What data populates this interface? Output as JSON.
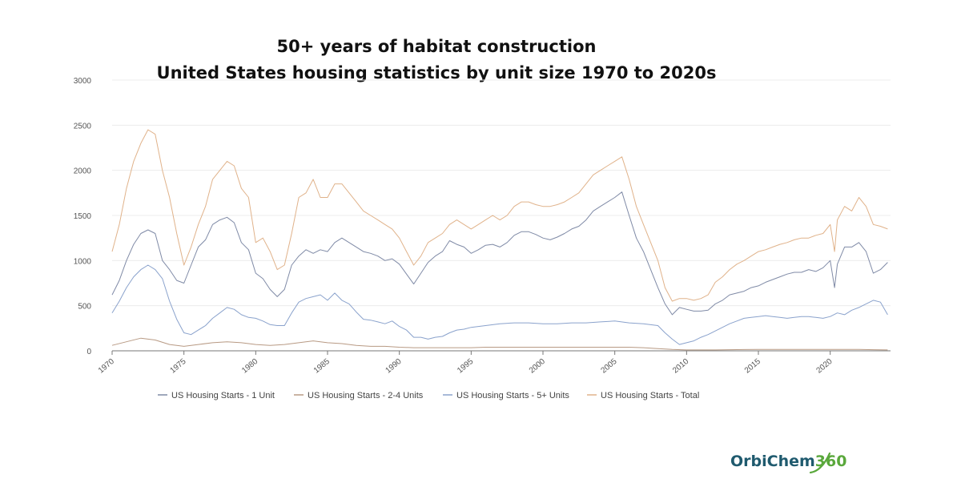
{
  "chart_data": {
    "type": "line",
    "title": "50+ years of habitat construction",
    "subtitle": "United States housing statistics by unit size 1970 to 2020s",
    "xlabel": "",
    "ylabel": "",
    "xlim": [
      1970,
      2024.2
    ],
    "ylim": [
      0,
      3000
    ],
    "y_ticks": [
      0,
      500,
      1000,
      1500,
      2000,
      2500,
      3000
    ],
    "x_ticks": [
      1970,
      1975,
      1980,
      1985,
      1990,
      1995,
      2000,
      2005,
      2010,
      2015,
      2020
    ],
    "grid": true,
    "legend_position": "bottom",
    "series": [
      {
        "name": "US Housing Starts - 1 Unit",
        "color": "#7f8aa6",
        "x": [
          1970,
          1970.5,
          1971,
          1971.5,
          1972,
          1972.5,
          1973,
          1973.5,
          1974,
          1974.5,
          1975,
          1975.5,
          1976,
          1976.5,
          1977,
          1977.5,
          1978,
          1978.5,
          1979,
          1979.5,
          1980,
          1980.5,
          1981,
          1981.5,
          1982,
          1982.5,
          1983,
          1983.5,
          1984,
          1984.5,
          1985,
          1985.5,
          1986,
          1986.5,
          1987,
          1987.5,
          1988,
          1988.5,
          1989,
          1989.5,
          1990,
          1990.5,
          1991,
          1991.5,
          1992,
          1992.5,
          1993,
          1993.5,
          1994,
          1994.5,
          1995,
          1995.5,
          1996,
          1996.5,
          1997,
          1997.5,
          1998,
          1998.5,
          1999,
          1999.5,
          2000,
          2000.5,
          2001,
          2001.5,
          2002,
          2002.5,
          2003,
          2003.5,
          2004,
          2004.5,
          2005,
          2005.5,
          2006,
          2006.5,
          2007,
          2007.5,
          2008,
          2008.5,
          2009,
          2009.5,
          2010,
          2010.5,
          2011,
          2011.5,
          2012,
          2012.5,
          2013,
          2013.5,
          2014,
          2014.5,
          2015,
          2015.5,
          2016,
          2016.5,
          2017,
          2017.5,
          2018,
          2018.5,
          2019,
          2019.5,
          2020,
          2020.3,
          2020.5,
          2021,
          2021.5,
          2022,
          2022.5,
          2023,
          2023.5,
          2024
        ],
        "values": [
          620,
          780,
          1000,
          1180,
          1300,
          1340,
          1300,
          1000,
          900,
          780,
          750,
          950,
          1150,
          1230,
          1400,
          1450,
          1480,
          1420,
          1200,
          1120,
          860,
          800,
          680,
          600,
          680,
          950,
          1050,
          1120,
          1080,
          1120,
          1100,
          1200,
          1250,
          1200,
          1150,
          1100,
          1080,
          1050,
          1000,
          1020,
          960,
          850,
          740,
          860,
          980,
          1050,
          1100,
          1220,
          1180,
          1150,
          1080,
          1120,
          1170,
          1180,
          1150,
          1200,
          1280,
          1320,
          1320,
          1290,
          1250,
          1230,
          1260,
          1300,
          1350,
          1380,
          1450,
          1550,
          1600,
          1650,
          1700,
          1760,
          1500,
          1250,
          1100,
          900,
          700,
          520,
          400,
          480,
          460,
          440,
          440,
          450,
          520,
          560,
          620,
          640,
          660,
          700,
          720,
          760,
          790,
          820,
          850,
          870,
          870,
          900,
          880,
          920,
          1000,
          700,
          960,
          1150,
          1150,
          1200,
          1100,
          860,
          900,
          980
        ]
      },
      {
        "name": "US Housing Starts - 2-4 Units",
        "color": "#b89a84",
        "x": [
          1970,
          1971,
          1972,
          1973,
          1974,
          1975,
          1976,
          1977,
          1978,
          1979,
          1980,
          1981,
          1982,
          1983,
          1984,
          1985,
          1986,
          1987,
          1988,
          1989,
          1990,
          1991,
          1992,
          1993,
          1994,
          1995,
          1996,
          1997,
          1998,
          1999,
          2000,
          2001,
          2002,
          2003,
          2004,
          2005,
          2006,
          2007,
          2008,
          2009,
          2010,
          2011,
          2012,
          2013,
          2014,
          2015,
          2016,
          2017,
          2018,
          2019,
          2020,
          2021,
          2022,
          2023,
          2024
        ],
        "values": [
          60,
          100,
          140,
          120,
          70,
          50,
          70,
          90,
          100,
          90,
          70,
          60,
          70,
          90,
          110,
          90,
          80,
          60,
          50,
          50,
          40,
          35,
          35,
          35,
          35,
          35,
          40,
          40,
          40,
          40,
          40,
          40,
          40,
          40,
          40,
          40,
          40,
          35,
          25,
          15,
          10,
          10,
          10,
          12,
          14,
          15,
          15,
          15,
          15,
          15,
          15,
          15,
          16,
          12,
          10
        ]
      },
      {
        "name": "US Housing Starts - 5+ Units",
        "color": "#8aa2cc",
        "x": [
          1970,
          1970.5,
          1971,
          1971.5,
          1972,
          1972.5,
          1973,
          1973.5,
          1974,
          1974.5,
          1975,
          1975.5,
          1976,
          1976.5,
          1977,
          1977.5,
          1978,
          1978.5,
          1979,
          1979.5,
          1980,
          1980.5,
          1981,
          1981.5,
          1982,
          1982.5,
          1983,
          1983.5,
          1984,
          1984.5,
          1985,
          1985.5,
          1986,
          1986.5,
          1987,
          1987.5,
          1988,
          1988.5,
          1989,
          1989.5,
          1990,
          1990.5,
          1991,
          1991.5,
          1992,
          1992.5,
          1993,
          1993.5,
          1994,
          1994.5,
          1995,
          1996,
          1997,
          1998,
          1999,
          2000,
          2001,
          2002,
          2003,
          2004,
          2005,
          2006,
          2007,
          2008,
          2008.5,
          2009,
          2009.5,
          2010,
          2010.5,
          2011,
          2011.5,
          2012,
          2012.5,
          2013,
          2013.5,
          2014,
          2014.5,
          2015,
          2015.5,
          2016,
          2016.5,
          2017,
          2017.5,
          2018,
          2018.5,
          2019,
          2019.5,
          2020,
          2020.5,
          2021,
          2021.5,
          2022,
          2022.5,
          2023,
          2023.5,
          2024
        ],
        "values": [
          420,
          550,
          700,
          820,
          900,
          950,
          900,
          800,
          550,
          350,
          200,
          180,
          230,
          280,
          360,
          420,
          480,
          460,
          400,
          370,
          360,
          330,
          290,
          280,
          280,
          420,
          540,
          580,
          600,
          620,
          560,
          640,
          560,
          520,
          430,
          350,
          340,
          320,
          300,
          330,
          270,
          230,
          150,
          150,
          130,
          150,
          160,
          200,
          230,
          240,
          260,
          280,
          300,
          310,
          310,
          300,
          300,
          310,
          310,
          320,
          330,
          310,
          300,
          280,
          200,
          130,
          70,
          90,
          110,
          150,
          180,
          220,
          260,
          300,
          330,
          360,
          370,
          380,
          390,
          380,
          370,
          360,
          370,
          380,
          380,
          370,
          360,
          380,
          420,
          400,
          450,
          480,
          520,
          560,
          540,
          400
        ]
      },
      {
        "name": "US Housing Starts - Total",
        "color": "#e0b28a",
        "x": [
          1970,
          1970.5,
          1971,
          1971.5,
          1972,
          1972.5,
          1973,
          1973.5,
          1974,
          1974.5,
          1975,
          1975.5,
          1976,
          1976.5,
          1977,
          1977.5,
          1978,
          1978.5,
          1979,
          1979.5,
          1980,
          1980.5,
          1981,
          1981.5,
          1982,
          1982.5,
          1983,
          1983.5,
          1984,
          1984.5,
          1985,
          1985.5,
          1986,
          1986.5,
          1987,
          1987.5,
          1988,
          1988.5,
          1989,
          1989.5,
          1990,
          1990.5,
          1991,
          1991.5,
          1992,
          1992.5,
          1993,
          1993.5,
          1994,
          1994.5,
          1995,
          1995.5,
          1996,
          1996.5,
          1997,
          1997.5,
          1998,
          1998.5,
          1999,
          1999.5,
          2000,
          2000.5,
          2001,
          2001.5,
          2002,
          2002.5,
          2003,
          2003.5,
          2004,
          2004.5,
          2005,
          2005.5,
          2006,
          2006.5,
          2007,
          2007.5,
          2008,
          2008.5,
          2009,
          2009.5,
          2010,
          2010.5,
          2011,
          2011.5,
          2012,
          2012.5,
          2013,
          2013.5,
          2014,
          2014.5,
          2015,
          2015.5,
          2016,
          2016.5,
          2017,
          2017.5,
          2018,
          2018.5,
          2019,
          2019.5,
          2020,
          2020.3,
          2020.5,
          2021,
          2021.5,
          2022,
          2022.5,
          2023,
          2023.5,
          2024
        ],
        "values": [
          1100,
          1400,
          1800,
          2100,
          2300,
          2450,
          2400,
          2000,
          1700,
          1300,
          950,
          1150,
          1400,
          1600,
          1900,
          2000,
          2100,
          2050,
          1800,
          1700,
          1200,
          1250,
          1100,
          900,
          950,
          1300,
          1700,
          1750,
          1900,
          1700,
          1700,
          1850,
          1850,
          1750,
          1650,
          1550,
          1500,
          1450,
          1400,
          1350,
          1250,
          1100,
          950,
          1050,
          1200,
          1250,
          1300,
          1400,
          1450,
          1400,
          1350,
          1400,
          1450,
          1500,
          1450,
          1500,
          1600,
          1650,
          1650,
          1620,
          1600,
          1600,
          1620,
          1650,
          1700,
          1750,
          1850,
          1950,
          2000,
          2050,
          2100,
          2150,
          1900,
          1600,
          1400,
          1200,
          1000,
          700,
          550,
          580,
          580,
          560,
          580,
          620,
          760,
          820,
          900,
          960,
          1000,
          1050,
          1100,
          1120,
          1150,
          1180,
          1200,
          1230,
          1250,
          1250,
          1280,
          1300,
          1400,
          1100,
          1450,
          1600,
          1550,
          1700,
          1600,
          1400,
          1380,
          1350
        ]
      }
    ]
  },
  "logo": {
    "part1": "OrbiChem",
    "part2": "360",
    "color1": "#1f5a6e",
    "color2": "#5aa83c"
  }
}
